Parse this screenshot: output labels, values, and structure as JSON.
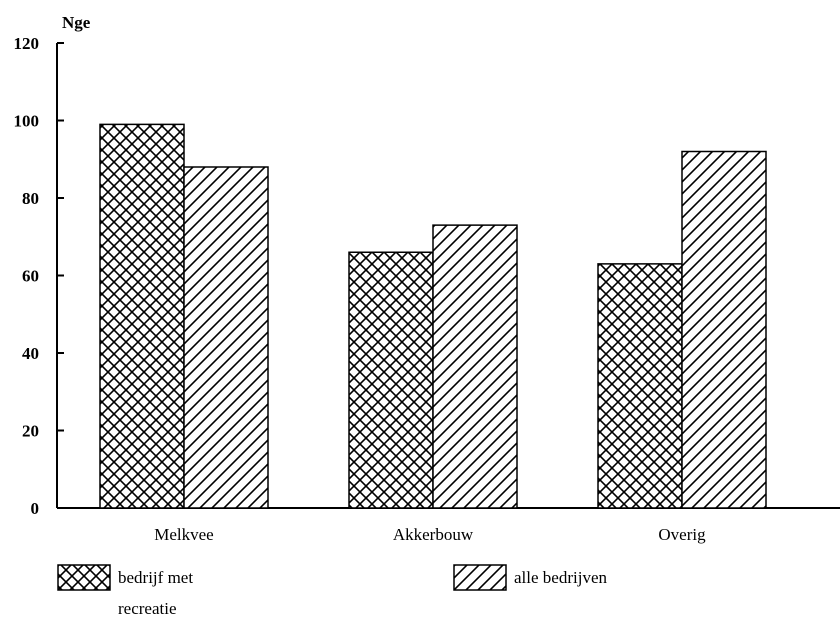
{
  "chart_data": {
    "type": "bar",
    "unit_label": "Nge",
    "categories": [
      "Melkvee",
      "Akkerbouw",
      "Overig"
    ],
    "series": [
      {
        "name": "bedrijf met recreatie",
        "pattern": "crosshatch",
        "values": [
          99,
          66,
          63
        ]
      },
      {
        "name": "alle bedrijven",
        "pattern": "diagonal",
        "values": [
          88,
          73,
          92
        ]
      }
    ],
    "ylim": [
      0,
      120
    ],
    "yticks": [
      0,
      20,
      40,
      60,
      80,
      100,
      120
    ],
    "grid": false,
    "legend_position": "bottom",
    "legend": [
      {
        "label_lines": [
          "bedrijf met",
          "recreatie"
        ]
      },
      {
        "label_lines": [
          "alle bedrijven"
        ]
      }
    ]
  }
}
